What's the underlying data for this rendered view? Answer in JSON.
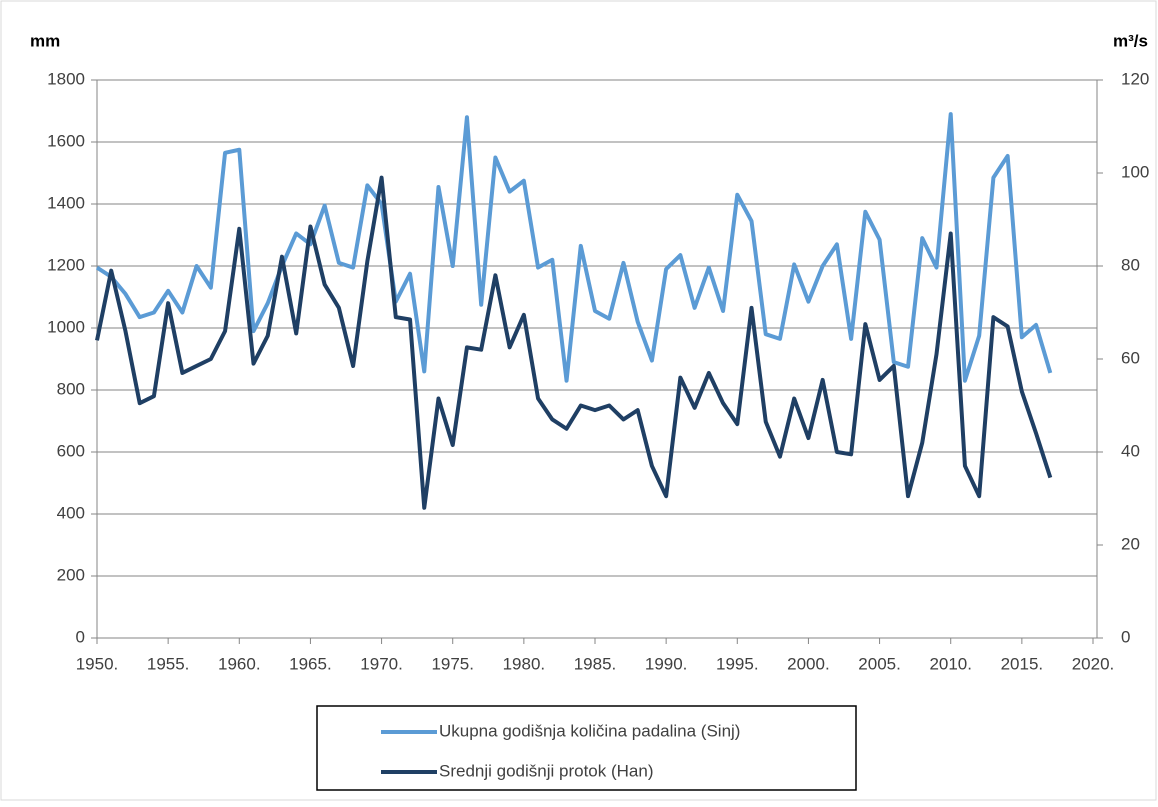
{
  "chart_data": {
    "type": "line",
    "y_axis_label": "mm",
    "y2_axis_label": "m³/s",
    "x": [
      1950,
      1951,
      1952,
      1953,
      1954,
      1955,
      1956,
      1957,
      1958,
      1959,
      1960,
      1961,
      1962,
      1963,
      1964,
      1965,
      1966,
      1967,
      1968,
      1969,
      1970,
      1971,
      1972,
      1973,
      1974,
      1975,
      1976,
      1977,
      1978,
      1979,
      1980,
      1981,
      1982,
      1983,
      1984,
      1985,
      1986,
      1987,
      1988,
      1989,
      1990,
      1991,
      1992,
      1993,
      1994,
      1995,
      1996,
      1997,
      1998,
      1999,
      2000,
      2001,
      2002,
      2003,
      2004,
      2005,
      2006,
      2007,
      2008,
      2009,
      2010,
      2011,
      2012,
      2013,
      2014,
      2015,
      2016,
      2017
    ],
    "series": [
      {
        "name": "Ukupna godišnja količina padalina (Sinj)",
        "color": "#5b9bd5",
        "values": [
          1195,
          1165,
          1110,
          1035,
          1050,
          1120,
          1050,
          1200,
          1130,
          1565,
          1575,
          990,
          1080,
          1200,
          1305,
          1270,
          1395,
          1210,
          1195,
          1460,
          1400,
          1085,
          1175,
          860,
          1455,
          1200,
          1680,
          1075,
          1550,
          1440,
          1475,
          1195,
          1220,
          830,
          1265,
          1055,
          1030,
          1210,
          1020,
          895,
          1190,
          1235,
          1065,
          1195,
          1055,
          1430,
          1345,
          980,
          965,
          1205,
          1085,
          1200,
          1270,
          965,
          1375,
          1285,
          890,
          875,
          1290,
          1195,
          1690,
          830,
          975,
          1485,
          1555,
          970,
          1010,
          855
        ]
      },
      {
        "name": "Srednji godišnji protok (Han)",
        "color": "#1f3f64",
        "axis": "y2",
        "values": [
          64,
          79,
          66,
          50.5,
          52,
          72,
          57,
          58.5,
          60,
          66,
          88,
          59,
          65,
          82,
          65.5,
          88.5,
          76,
          71,
          58.5,
          81,
          99,
          69,
          68.5,
          28,
          51.5,
          41.5,
          62.5,
          62,
          78,
          62.5,
          69.5,
          51.5,
          47,
          45,
          50,
          49,
          50,
          47,
          49,
          37,
          30.5,
          56,
          49.5,
          57,
          50.5,
          46,
          71,
          46.5,
          39,
          51.5,
          43,
          55.5,
          40,
          39.5,
          67.5,
          55.5,
          58.5,
          30.5,
          42,
          61,
          87,
          37,
          30.5,
          69,
          67,
          53,
          44,
          34.5
        ]
      }
    ],
    "xlim": [
      1950,
      2020
    ],
    "xticks": [
      {
        "value": 1950,
        "label": "1950."
      },
      {
        "value": 1955,
        "label": "1955."
      },
      {
        "value": 1960,
        "label": "1960."
      },
      {
        "value": 1965,
        "label": "1965."
      },
      {
        "value": 1970,
        "label": "1970."
      },
      {
        "value": 1975,
        "label": "1975."
      },
      {
        "value": 1980,
        "label": "1980."
      },
      {
        "value": 1985,
        "label": "1985."
      },
      {
        "value": 1990,
        "label": "1990."
      },
      {
        "value": 1995,
        "label": "1995."
      },
      {
        "value": 2000,
        "label": "2000."
      },
      {
        "value": 2005,
        "label": "2005."
      },
      {
        "value": 2010,
        "label": "2010."
      },
      {
        "value": 2015,
        "label": "2015."
      },
      {
        "value": 2020,
        "label": "2020."
      }
    ],
    "ylim": [
      0,
      1800
    ],
    "yticks": [
      0,
      200,
      400,
      600,
      800,
      1000,
      1200,
      1400,
      1600,
      1800
    ],
    "y2lim": [
      0,
      120
    ],
    "y2ticks": [
      0,
      20,
      40,
      60,
      80,
      100,
      120
    ],
    "grid": true,
    "legend": "bottom"
  }
}
